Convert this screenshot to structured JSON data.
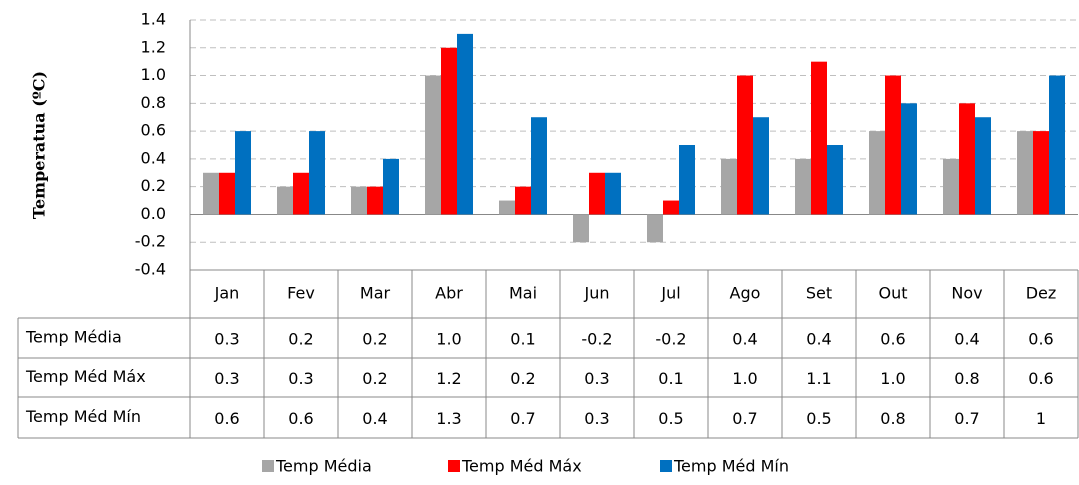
{
  "chart_data": {
    "type": "bar",
    "ylabel": "Temperatua (ºC)",
    "categories": [
      "Jan",
      "Fev",
      "Mar",
      "Abr",
      "Mai",
      "Jun",
      "Jul",
      "Ago",
      "Set",
      "Out",
      "Nov",
      "Dez"
    ],
    "series": [
      {
        "name": "Temp  Média",
        "color": "#a6a6a6",
        "values": [
          0.3,
          0.2,
          0.2,
          1.0,
          0.1,
          -0.2,
          -0.2,
          0.4,
          0.4,
          0.6,
          0.4,
          0.6
        ],
        "value_labels": [
          "0.3",
          "0.2",
          "0.2",
          "1.0",
          "0.1",
          "-0.2",
          "-0.2",
          "0.4",
          "0.4",
          "0.6",
          "0.4",
          "0.6"
        ]
      },
      {
        "name": "Temp Méd Máx",
        "color": "#ff0000",
        "values": [
          0.3,
          0.3,
          0.2,
          1.2,
          0.2,
          0.3,
          0.1,
          1.0,
          1.1,
          1.0,
          0.8,
          0.6
        ],
        "value_labels": [
          "0.3",
          "0.3",
          "0.2",
          "1.2",
          "0.2",
          "0.3",
          "0.1",
          "1.0",
          "1.1",
          "1.0",
          "0.8",
          "0.6"
        ]
      },
      {
        "name": "Temp Méd Mín",
        "color": "#0070c0",
        "values": [
          0.6,
          0.6,
          0.4,
          1.3,
          0.7,
          0.3,
          0.5,
          0.7,
          0.5,
          0.8,
          0.7,
          1
        ],
        "value_labels": [
          "0.6",
          "0.6",
          "0.4",
          "1.3",
          "0.7",
          "0.3",
          "0.5",
          "0.7",
          "0.5",
          "0.8",
          "0.7",
          "1"
        ]
      }
    ],
    "ylim": [
      -0.4,
      1.4
    ],
    "yticks": [
      1.4,
      1.2,
      {
        "value": 1.0,
        "label": "1.0"
      },
      0.8,
      0.6,
      0.4,
      0.2,
      {
        "value": 0,
        "label": "0.0"
      },
      -0.2,
      -0.4
    ],
    "grid": true
  }
}
